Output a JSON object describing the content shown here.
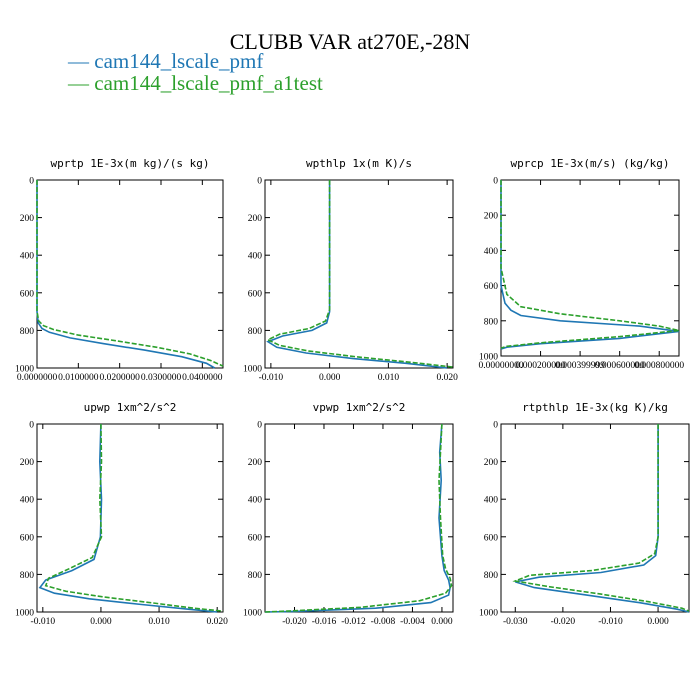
{
  "figure_title": "CLUBB VAR at270E,-28N",
  "legend": [
    {
      "name": "cam144_lscale_pmf",
      "color": "#1f77b4",
      "marker": "—"
    },
    {
      "name": "cam144_lscale_pmf_a1test",
      "color": "#2ca02c",
      "marker": "—"
    }
  ],
  "chart_data": [
    {
      "type": "line",
      "title": "wprtp  1E-3x(m kg)/(s kg)",
      "xlim": [
        0,
        0.045
      ],
      "ylim": [
        1000,
        0
      ],
      "xticks": [
        0,
        0.01,
        0.02,
        0.03,
        0.04
      ],
      "xtick_labels": [
        "0.0000000",
        "0.0100000",
        "0.0200000",
        "0.0300000",
        "0.0400000"
      ],
      "yticks": [
        0,
        200,
        400,
        600,
        800,
        1000
      ],
      "ytick_labels": [
        "0",
        "200",
        "400",
        "600",
        "800",
        "1000"
      ],
      "series": [
        {
          "name": "cam144_lscale_pmf",
          "x": [
            0,
            0,
            0,
            0.0003,
            0.0012,
            0.003,
            0.008,
            0.016,
            0.026,
            0.035,
            0.041,
            0.043
          ],
          "y": [
            0,
            400,
            700,
            760,
            790,
            810,
            840,
            870,
            905,
            940,
            975,
            1000
          ]
        },
        {
          "name": "cam144_lscale_pmf_a1test",
          "x": [
            0,
            0,
            0,
            0.0004,
            0.0016,
            0.004,
            0.01,
            0.019,
            0.029,
            0.037,
            0.042,
            0.045
          ],
          "y": [
            0,
            400,
            700,
            750,
            775,
            795,
            825,
            855,
            890,
            925,
            960,
            990
          ]
        }
      ]
    },
    {
      "type": "line",
      "title": "wpthlp  1x(m K)/s",
      "xlim": [
        -0.011,
        0.021
      ],
      "ylim": [
        1000,
        0
      ],
      "xticks": [
        -0.01,
        0,
        0.01,
        0.02
      ],
      "xtick_labels": [
        "-0.010",
        "0.000",
        "0.010",
        "0.020"
      ],
      "yticks": [
        0,
        200,
        400,
        600,
        800,
        1000
      ],
      "ytick_labels": [
        "0",
        "200",
        "400",
        "600",
        "800",
        "1000"
      ],
      "series": [
        {
          "name": "cam144_lscale_pmf",
          "x": [
            0,
            0,
            -0.0005,
            -0.003,
            -0.008,
            -0.0105,
            -0.009,
            -0.004,
            0.004,
            0.013,
            0.02
          ],
          "y": [
            0,
            700,
            760,
            800,
            830,
            860,
            890,
            920,
            950,
            975,
            1000
          ]
        },
        {
          "name": "cam144_lscale_pmf_a1test",
          "x": [
            0,
            0,
            -0.0007,
            -0.0035,
            -0.0085,
            -0.0105,
            -0.0085,
            -0.0035,
            0.005,
            0.014,
            0.021
          ],
          "y": [
            0,
            690,
            750,
            790,
            820,
            850,
            880,
            910,
            942,
            970,
            995
          ]
        }
      ]
    },
    {
      "type": "line",
      "title": "wprcp  1E-3x(m/s) (kg/kg)",
      "xlim": [
        0,
        0.0009
      ],
      "ylim": [
        1000,
        0
      ],
      "xticks": [
        0,
        0.0002,
        0.0004,
        0.0006,
        0.0008
      ],
      "xtick_labels": [
        "0.00000000",
        "0.000200000",
        "0.000399999",
        "0.000600000",
        "0.000800000"
      ],
      "yticks": [
        0,
        200,
        400,
        600,
        800,
        1000
      ],
      "ytick_labels": [
        "0",
        "200",
        "400",
        "600",
        "800",
        "1000"
      ],
      "series": [
        {
          "name": "cam144_lscale_pmf",
          "x": [
            0,
            0,
            2e-05,
            5e-05,
            0.0001,
            0.0003,
            0.0007,
            0.0009,
            0.0006,
            0.0002,
            3e-05,
            0
          ],
          "y": [
            0,
            600,
            700,
            740,
            770,
            800,
            830,
            860,
            900,
            930,
            950,
            960
          ]
        },
        {
          "name": "cam144_lscale_pmf_a1test",
          "x": [
            0,
            0,
            3e-05,
            0.0001,
            0.0003,
            0.0006,
            0.0008,
            0.0009,
            0.0006,
            0.0002,
            3e-05,
            0
          ],
          "y": [
            0,
            500,
            650,
            720,
            760,
            800,
            830,
            855,
            890,
            925,
            945,
            955
          ]
        }
      ]
    },
    {
      "type": "line",
      "title": "upwp  1xm^2/s^2",
      "xlim": [
        -0.011,
        0.021
      ],
      "ylim": [
        1000,
        0
      ],
      "xticks": [
        -0.01,
        0,
        0.01,
        0.02
      ],
      "xtick_labels": [
        "-0.010",
        "0.000",
        "0.010",
        "0.020"
      ],
      "yticks": [
        0,
        200,
        400,
        600,
        800,
        1000
      ],
      "ytick_labels": [
        "0",
        "200",
        "400",
        "600",
        "800",
        "1000"
      ],
      "series": [
        {
          "name": "cam144_lscale_pmf",
          "x": [
            0,
            -0.0002,
            0.0001,
            -0.0001,
            -0.0012,
            -0.005,
            -0.0095,
            -0.0105,
            -0.008,
            -0.002,
            0.007,
            0.015,
            0.02
          ],
          "y": [
            0,
            200,
            400,
            600,
            720,
            780,
            830,
            870,
            900,
            930,
            960,
            985,
            1000
          ]
        },
        {
          "name": "cam144_lscale_pmf_a1test",
          "x": [
            0,
            0.0001,
            -0.0002,
            0.0001,
            -0.0015,
            -0.0055,
            -0.009,
            -0.0095,
            -0.006,
            0.0005,
            0.009,
            0.016,
            0.021
          ],
          "y": [
            0,
            200,
            400,
            600,
            710,
            770,
            820,
            860,
            890,
            920,
            952,
            980,
            995
          ]
        }
      ]
    },
    {
      "type": "line",
      "title": "vpwp  1xm^2/s^2",
      "xlim": [
        -0.024,
        0.0015
      ],
      "ylim": [
        1000,
        0
      ],
      "xticks": [
        -0.02,
        -0.016,
        -0.012,
        -0.008,
        -0.004,
        0
      ],
      "xtick_labels": [
        "-0.020",
        "-0.016",
        "-0.012",
        "-0.008",
        "-0.004",
        "0.000"
      ],
      "yticks": [
        0,
        200,
        400,
        600,
        800,
        1000
      ],
      "ytick_labels": [
        "0",
        "200",
        "400",
        "600",
        "800",
        "1000"
      ],
      "series": [
        {
          "name": "cam144_lscale_pmf",
          "x": [
            0,
            -0.0003,
            -0.0001,
            -0.0004,
            0,
            0.0003,
            0.0009,
            0.0011,
            0.0009,
            -0.0015,
            -0.009,
            -0.02,
            -0.024
          ],
          "y": [
            0,
            150,
            300,
            500,
            700,
            780,
            830,
            870,
            910,
            950,
            980,
            997,
            1000
          ]
        },
        {
          "name": "cam144_lscale_pmf_a1test",
          "x": [
            0,
            -0.0002,
            -0.0004,
            -0.0002,
            0.0001,
            0.0005,
            0.0011,
            0.0013,
            0.0005,
            -0.003,
            -0.011,
            -0.021,
            -0.024
          ],
          "y": [
            0,
            150,
            300,
            500,
            700,
            770,
            820,
            860,
            900,
            940,
            975,
            995,
            1000
          ]
        }
      ]
    },
    {
      "type": "line",
      "title": "rtpthlp  1E-3x(kg K)/kg",
      "xlim": [
        -0.033,
        0.0065
      ],
      "ylim": [
        1000,
        0
      ],
      "xticks": [
        -0.03,
        -0.02,
        -0.01,
        0
      ],
      "xtick_labels": [
        "-0.030",
        "-0.020",
        "-0.010",
        "0.000"
      ],
      "yticks": [
        0,
        200,
        400,
        600,
        800,
        1000
      ],
      "ytick_labels": [
        "0",
        "200",
        "400",
        "600",
        "800",
        "1000"
      ],
      "series": [
        {
          "name": "cam144_lscale_pmf",
          "x": [
            0,
            0,
            -0.0005,
            -0.003,
            -0.012,
            -0.025,
            -0.03,
            -0.026,
            -0.015,
            -0.004,
            0.004,
            0.0065
          ],
          "y": [
            0,
            600,
            700,
            750,
            790,
            815,
            840,
            870,
            910,
            950,
            985,
            1000
          ]
        },
        {
          "name": "cam144_lscale_pmf_a1test",
          "x": [
            0,
            0,
            -0.0007,
            -0.004,
            -0.014,
            -0.027,
            -0.03,
            -0.023,
            -0.012,
            -0.002,
            0.005,
            0.0065
          ],
          "y": [
            0,
            600,
            690,
            740,
            780,
            805,
            835,
            865,
            905,
            945,
            980,
            995
          ]
        }
      ]
    }
  ]
}
